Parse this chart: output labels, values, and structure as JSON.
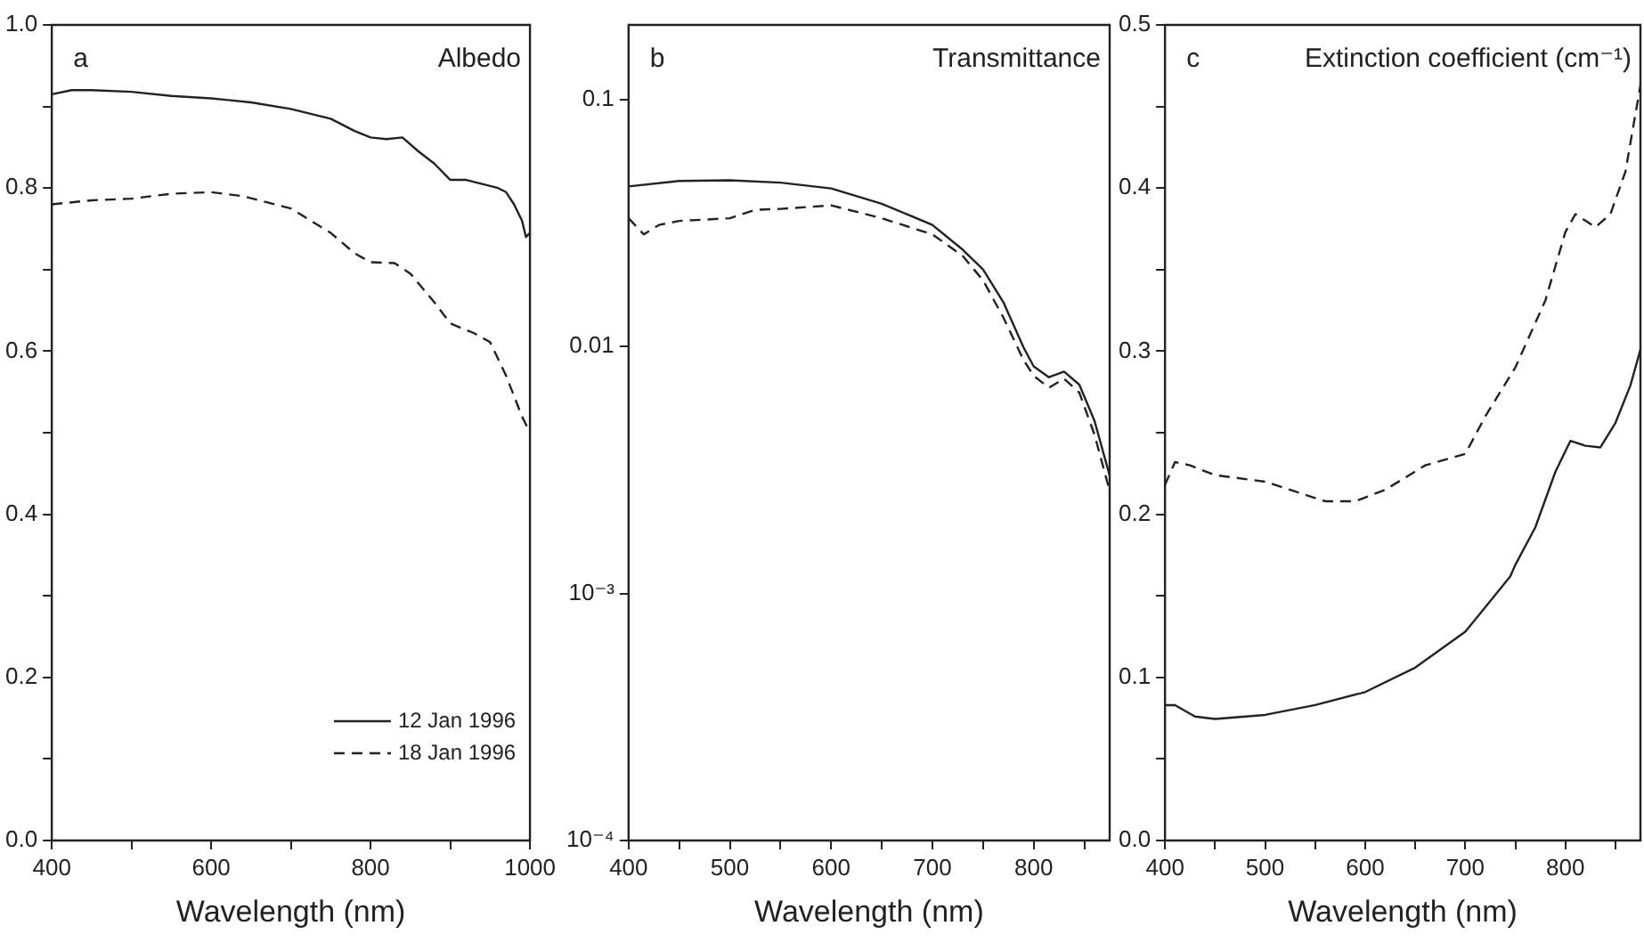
{
  "chart_data": [
    {
      "type": "line",
      "title": "Albedo",
      "annotations": [
        "a"
      ],
      "xlabel": "Wavelength (nm)",
      "xlim": [
        400,
        1000
      ],
      "xticks": [
        400,
        {
          "value": 500,
          "label": null
        },
        600,
        {
          "value": 700,
          "label": null
        },
        800,
        {
          "value": 900,
          "label": null
        },
        1000
      ],
      "ylim": [
        0,
        1
      ],
      "yticks": [
        {
          "value": 0,
          "label": "0.0"
        },
        {
          "value": 0.1,
          "label": null
        },
        {
          "value": 0.2,
          "label": "0.2"
        },
        {
          "value": 0.3,
          "label": null
        },
        {
          "value": 0.4,
          "label": "0.4"
        },
        {
          "value": 0.5,
          "label": null
        },
        {
          "value": 0.6,
          "label": "0.6"
        },
        {
          "value": 0.7,
          "label": null
        },
        {
          "value": 0.8,
          "label": "0.8"
        },
        {
          "value": 0.9,
          "label": null
        },
        {
          "value": 1,
          "label": "1.0"
        }
      ],
      "legend": "bottom right",
      "marker": "none",
      "series": [
        {
          "name": "12 Jan 1996",
          "color": "#222222",
          "line_style": "solid",
          "x": [
            400,
            425,
            450,
            500,
            550,
            600,
            650,
            700,
            750,
            780,
            800,
            820,
            840,
            860,
            880,
            900,
            920,
            940,
            960,
            970,
            980,
            990,
            995,
            1000
          ],
          "values": [
            0.915,
            0.92,
            0.92,
            0.918,
            0.913,
            0.91,
            0.905,
            0.897,
            0.885,
            0.87,
            0.862,
            0.86,
            0.862,
            0.845,
            0.83,
            0.81,
            0.81,
            0.805,
            0.8,
            0.795,
            0.78,
            0.76,
            0.74,
            0.745
          ]
        },
        {
          "name": "18 Jan 1996",
          "color": "#222222",
          "line_style": "dashed",
          "x": [
            400,
            450,
            500,
            550,
            600,
            640,
            700,
            750,
            780,
            800,
            830,
            850,
            880,
            900,
            930,
            950,
            970,
            990,
            1000
          ],
          "values": [
            0.78,
            0.785,
            0.787,
            0.793,
            0.795,
            0.79,
            0.775,
            0.745,
            0.72,
            0.709,
            0.708,
            0.695,
            0.66,
            0.634,
            0.622,
            0.611,
            0.57,
            0.52,
            0.5
          ]
        }
      ]
    },
    {
      "type": "line",
      "title": "Transmittance",
      "annotations": [
        "b"
      ],
      "xlabel": "Wavelength (nm)",
      "log": "y",
      "xlim": [
        400,
        875
      ],
      "xticks": [
        400,
        {
          "value": 450,
          "label": null
        },
        500,
        {
          "value": 550,
          "label": null
        },
        600,
        {
          "value": 650,
          "label": null
        },
        700,
        {
          "value": 750,
          "label": null
        },
        800,
        {
          "value": 850,
          "label": null
        }
      ],
      "ylim": [
        0.0001,
        0.2
      ],
      "yticks": [
        {
          "value": 0.0001,
          "label": "10⁻⁴"
        },
        {
          "value": 0.001,
          "label": "10⁻³"
        },
        0.01,
        0.1
      ],
      "marker": "none",
      "series": [
        {
          "color": "#222222",
          "line_style": "solid",
          "x": [
            400,
            450,
            500,
            550,
            600,
            650,
            700,
            730,
            750,
            770,
            790,
            800,
            815,
            830,
            845,
            860,
            875
          ],
          "values": [
            0.0444,
            0.0467,
            0.047,
            0.046,
            0.0436,
            0.0378,
            0.031,
            0.0246,
            0.0205,
            0.0151,
            0.0099,
            0.0083,
            0.0075,
            0.0079,
            0.007,
            0.005,
            0.003
          ]
        },
        {
          "color": "#222222",
          "line_style": "dashed",
          "x": [
            400,
            415,
            430,
            450,
            500,
            525,
            550,
            600,
            650,
            700,
            730,
            750,
            770,
            790,
            800,
            815,
            830,
            845,
            860,
            875
          ],
          "values": [
            0.033,
            0.0284,
            0.031,
            0.0322,
            0.033,
            0.0357,
            0.036,
            0.0372,
            0.033,
            0.0284,
            0.0232,
            0.0185,
            0.0131,
            0.0088,
            0.0076,
            0.0068,
            0.0074,
            0.0065,
            0.0044,
            0.0026
          ]
        }
      ]
    },
    {
      "type": "line",
      "title": "Extinction coefficient (cm⁻¹)",
      "annotations": [
        "c"
      ],
      "xlabel": "Wavelength (nm)",
      "xlim": [
        400,
        875
      ],
      "xticks": [
        400,
        {
          "value": 450,
          "label": null
        },
        500,
        {
          "value": 550,
          "label": null
        },
        600,
        {
          "value": 650,
          "label": null
        },
        700,
        {
          "value": 750,
          "label": null
        },
        800,
        {
          "value": 850,
          "label": null
        }
      ],
      "ylim": [
        0,
        0.5
      ],
      "yticks": [
        {
          "value": 0,
          "label": "0.0"
        },
        {
          "value": 0.05,
          "label": null
        },
        0.1,
        {
          "value": 0.15,
          "label": null
        },
        0.2,
        {
          "value": 0.25,
          "label": null
        },
        0.3,
        {
          "value": 0.35,
          "label": null
        },
        0.4,
        {
          "value": 0.45,
          "label": null
        },
        0.5
      ],
      "marker": "none",
      "series": [
        {
          "color": "#222222",
          "line_style": "solid",
          "x": [
            400,
            410,
            430,
            450,
            500,
            550,
            600,
            650,
            700,
            720,
            745,
            750,
            770,
            790,
            805,
            820,
            835,
            850,
            865,
            875
          ],
          "values": [
            0.083,
            0.083,
            0.076,
            0.0745,
            0.077,
            0.083,
            0.091,
            0.106,
            0.128,
            0.143,
            0.162,
            0.169,
            0.192,
            0.226,
            0.245,
            0.242,
            0.241,
            0.256,
            0.279,
            0.301
          ]
        },
        {
          "color": "#222222",
          "line_style": "dashed",
          "x": [
            400,
            410,
            425,
            450,
            500,
            530,
            560,
            590,
            620,
            660,
            700,
            720,
            750,
            780,
            800,
            810,
            820,
            830,
            845,
            860,
            875
          ],
          "values": [
            0.218,
            0.232,
            0.23,
            0.224,
            0.22,
            0.214,
            0.208,
            0.208,
            0.215,
            0.23,
            0.237,
            0.26,
            0.29,
            0.331,
            0.373,
            0.384,
            0.38,
            0.376,
            0.384,
            0.41,
            0.463
          ]
        }
      ]
    }
  ]
}
